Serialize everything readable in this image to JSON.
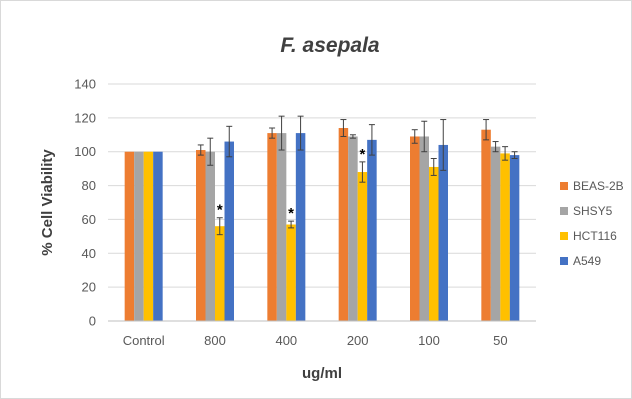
{
  "chart_data": {
    "type": "bar",
    "title": "F. asepala",
    "xlabel": "ug/ml",
    "ylabel": "% Cell Viability",
    "ylim": [
      0,
      140
    ],
    "yticks": [
      0,
      20,
      40,
      60,
      80,
      100,
      120,
      140
    ],
    "grid": true,
    "legend_position": "right",
    "categories": [
      "Control",
      "800",
      "400",
      "200",
      "100",
      "50"
    ],
    "series": [
      {
        "name": "BEAS-2B",
        "color": "#ED7D31",
        "values": [
          100,
          101,
          111,
          114,
          109,
          113
        ],
        "errors": [
          0,
          3,
          3,
          5,
          4,
          6
        ]
      },
      {
        "name": "SHSY5",
        "color": "#A5A5A5",
        "values": [
          100,
          100,
          111,
          109,
          109,
          103
        ],
        "errors": [
          0,
          8,
          10,
          1,
          9,
          3
        ]
      },
      {
        "name": "HCT116",
        "color": "#FFC000",
        "values": [
          100,
          56,
          57,
          88,
          91,
          99
        ],
        "errors": [
          0,
          5,
          2,
          6,
          5,
          4
        ]
      },
      {
        "name": "A549",
        "color": "#4472C4",
        "values": [
          100,
          106,
          111,
          107,
          104,
          98
        ],
        "errors": [
          0,
          9,
          10,
          9,
          15,
          2
        ]
      }
    ],
    "annotations": [
      {
        "text": "*",
        "category": "800",
        "series": "HCT116"
      },
      {
        "text": "*",
        "category": "400",
        "series": "HCT116"
      },
      {
        "text": "*",
        "category": "200",
        "series": "HCT116"
      }
    ]
  }
}
